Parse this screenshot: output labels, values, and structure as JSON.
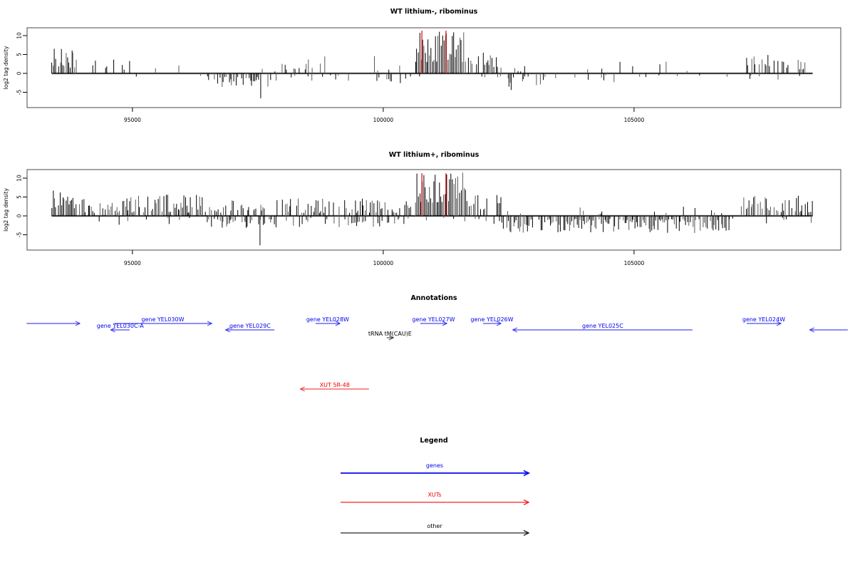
{
  "colors": {
    "gene": "#0000ee",
    "xut": "#ee0000",
    "other": "#000000"
  },
  "annotations": {
    "title": "Annotations",
    "items": [
      {
        "name": "gene-partial-left",
        "label": "",
        "category": "gene",
        "dir": "right",
        "start": 92890,
        "end": 93950,
        "row": "w"
      },
      {
        "name": "gene-YEL030W",
        "label": "gene YEL030W",
        "category": "gene",
        "dir": "right",
        "start": 94630,
        "end": 96580,
        "row": "w"
      },
      {
        "name": "gene-YEL030C-A",
        "label": "gene YEL030C-A",
        "category": "gene",
        "dir": "left",
        "start": 94570,
        "end": 94945,
        "row": "c"
      },
      {
        "name": "gene-YEL029C",
        "label": "gene YEL029C",
        "category": "gene",
        "dir": "left",
        "start": 96860,
        "end": 97830,
        "row": "c"
      },
      {
        "name": "gene-YEL028W",
        "label": "gene YEL028W",
        "category": "gene",
        "dir": "right",
        "start": 98650,
        "end": 99135,
        "row": "w"
      },
      {
        "name": "gene-YEL027W",
        "label": "gene YEL027W",
        "category": "gene",
        "dir": "right",
        "start": 100740,
        "end": 101265,
        "row": "w"
      },
      {
        "name": "gene-YEL026W",
        "label": "gene YEL026W",
        "category": "gene",
        "dir": "right",
        "start": 101990,
        "end": 102345,
        "row": "w"
      },
      {
        "name": "gene-YEL025C",
        "label": "gene YEL025C",
        "category": "gene",
        "dir": "left",
        "start": 102585,
        "end": 106165,
        "row": "c"
      },
      {
        "name": "gene-YEL024W",
        "label": "gene YEL024W",
        "category": "gene",
        "dir": "right",
        "start": 107245,
        "end": 107925,
        "row": "w"
      },
      {
        "name": "gene-partial-right",
        "label": "",
        "category": "gene",
        "dir": "left",
        "start": 108505,
        "end": 109260,
        "row": "c"
      },
      {
        "name": "trna-tM-CAU-E",
        "label": "tRNA tM(CAU)E",
        "category": "other",
        "dir": "right",
        "start": 100070,
        "end": 100200,
        "row": "trna"
      },
      {
        "name": "xut-5R-48",
        "label": "XUT 5R-48",
        "category": "xut",
        "dir": "left",
        "start": 98350,
        "end": 99715,
        "row": "xut"
      }
    ]
  },
  "legend": {
    "title": "Legend",
    "items": [
      {
        "name": "genes",
        "label": "genes",
        "color": "#0000ee"
      },
      {
        "name": "XUTs",
        "label": "XUTs",
        "color": "#ee0000"
      },
      {
        "name": "other",
        "label": "other",
        "color": "#000000"
      }
    ]
  },
  "chart_data": [
    {
      "type": "bar",
      "title": "WT lithium-, ribominus",
      "ylabel": "log2 tag density",
      "xlim": [
        92900,
        109120
      ],
      "ylim": [
        -9,
        12
      ],
      "xticks": [
        {
          "value": 95000,
          "label": "95000"
        },
        {
          "value": 100000,
          "label": "100000"
        },
        {
          "value": 105000,
          "label": "105000"
        }
      ],
      "yticks": [
        {
          "value": -5,
          "label": "-5"
        },
        {
          "value": 0,
          "label": "0"
        },
        {
          "value": 5,
          "label": "5"
        },
        {
          "value": 10,
          "label": "10"
        }
      ],
      "axis_line_range": [
        93390,
        108560
      ],
      "vlines": {
        "color": "#e60000",
        "height": 11.3,
        "x": [
          100770,
          101250
        ]
      },
      "seed": 20,
      "regions": [
        {
          "start": 93390,
          "end": 93880,
          "pos": {
            "density": 0.95,
            "min": 1.5,
            "max": 6.8
          },
          "neg": null
        },
        {
          "start": 93920,
          "end": 95620,
          "pos": {
            "density": 0.2,
            "min": 0.8,
            "max": 4.2
          },
          "neg": {
            "density": 0.02,
            "min": 0.5,
            "max": 1.2
          }
        },
        {
          "start": 95620,
          "end": 96500,
          "pos": {
            "density": 0.1,
            "min": 0.8,
            "max": 3.2
          },
          "neg": {
            "density": 0.03,
            "min": 0.5,
            "max": 1.0
          }
        },
        {
          "start": 96500,
          "end": 97900,
          "pos": {
            "density": 0.04,
            "min": 0.5,
            "max": 1.5
          },
          "neg": {
            "density": 0.55,
            "min": 0.8,
            "max": 3.6
          },
          "spikes": [
            [
              97557,
              -6.6
            ]
          ]
        },
        {
          "start": 97960,
          "end": 98900,
          "pos": {
            "density": 0.35,
            "min": 1.0,
            "max": 4.6
          },
          "neg": {
            "density": 0.12,
            "min": 0.5,
            "max": 2.2
          }
        },
        {
          "start": 98900,
          "end": 99740,
          "pos": {
            "density": 0.07,
            "min": 0.5,
            "max": 2.2
          },
          "neg": {
            "density": 0.1,
            "min": 0.5,
            "max": 2.0
          }
        },
        {
          "start": 99740,
          "end": 100570,
          "pos": {
            "density": 0.15,
            "min": 0.5,
            "max": 4.6
          },
          "neg": {
            "density": 0.22,
            "min": 0.8,
            "max": 2.6
          }
        },
        {
          "start": 100640,
          "end": 101660,
          "pos": {
            "density": 1.0,
            "min": 3.0,
            "max": 11.6
          },
          "neg": {
            "density": 0.05,
            "min": 0.5,
            "max": 1.5
          }
        },
        {
          "start": 101660,
          "end": 102370,
          "pos": {
            "density": 0.55,
            "min": 1.5,
            "max": 6.2
          },
          "neg": {
            "density": 0.06,
            "min": 0.5,
            "max": 1.5
          }
        },
        {
          "start": 102370,
          "end": 103300,
          "pos": {
            "density": 0.06,
            "min": 0.5,
            "max": 2.0
          },
          "neg": {
            "density": 0.4,
            "min": 0.8,
            "max": 3.6
          },
          "spikes": [
            [
              102550,
              -4.4
            ]
          ]
        },
        {
          "start": 103300,
          "end": 106140,
          "pos": {
            "density": 0.1,
            "min": 0.5,
            "max": 3.4
          },
          "neg": {
            "density": 0.12,
            "min": 0.5,
            "max": 2.6
          }
        },
        {
          "start": 106140,
          "end": 107130,
          "pos": {
            "density": 0.02,
            "min": 0.5,
            "max": 1.6
          },
          "neg": {
            "density": 0.04,
            "min": 0.5,
            "max": 1.6
          }
        },
        {
          "start": 107130,
          "end": 108510,
          "pos": {
            "density": 0.5,
            "min": 1.0,
            "max": 5.2
          },
          "neg": {
            "density": 0.06,
            "min": 0.5,
            "max": 2.0
          }
        }
      ]
    },
    {
      "type": "bar",
      "title": "WT lithium+, ribominus",
      "ylabel": "log2 tag density",
      "xlim": [
        92900,
        109120
      ],
      "ylim": [
        -9,
        12
      ],
      "xticks": [
        {
          "value": 95000,
          "label": "95000"
        },
        {
          "value": 100000,
          "label": "100000"
        },
        {
          "value": 105000,
          "label": "105000"
        }
      ],
      "yticks": [
        {
          "value": -5,
          "label": "-5"
        },
        {
          "value": 0,
          "label": "0"
        },
        {
          "value": 5,
          "label": "5"
        },
        {
          "value": 10,
          "label": "10"
        }
      ],
      "axis_line_range": [
        93390,
        108560
      ],
      "vlines": {
        "color": "#e60000",
        "height": 11.3,
        "x": [
          100770,
          101250
        ]
      },
      "seed": 77,
      "regions": [
        {
          "start": 93390,
          "end": 93880,
          "pos": {
            "density": 0.95,
            "min": 2.0,
            "max": 7.6
          },
          "neg": {
            "density": 0.05,
            "min": 0.5,
            "max": 1.5
          }
        },
        {
          "start": 93920,
          "end": 96500,
          "pos": {
            "density": 0.75,
            "min": 0.8,
            "max": 5.6
          },
          "neg": {
            "density": 0.12,
            "min": 0.5,
            "max": 2.6
          }
        },
        {
          "start": 96500,
          "end": 97900,
          "pos": {
            "density": 0.55,
            "min": 0.8,
            "max": 4.6
          },
          "neg": {
            "density": 0.5,
            "min": 0.8,
            "max": 3.2
          },
          "spikes": [
            [
              97543,
              -7.8
            ]
          ]
        },
        {
          "start": 97960,
          "end": 100570,
          "pos": {
            "density": 0.65,
            "min": 0.8,
            "max": 4.6
          },
          "neg": {
            "density": 0.4,
            "min": 0.5,
            "max": 3.0
          }
        },
        {
          "start": 100640,
          "end": 101660,
          "pos": {
            "density": 1.0,
            "min": 3.5,
            "max": 11.6
          },
          "neg": {
            "density": 0.08,
            "min": 0.5,
            "max": 2.0
          }
        },
        {
          "start": 101660,
          "end": 102370,
          "pos": {
            "density": 0.6,
            "min": 1.5,
            "max": 6.2
          },
          "neg": {
            "density": 0.15,
            "min": 0.5,
            "max": 2.2
          }
        },
        {
          "start": 102370,
          "end": 106900,
          "pos": {
            "density": 0.12,
            "min": 0.5,
            "max": 2.6
          },
          "neg": {
            "density": 0.85,
            "min": 0.8,
            "max": 4.6
          }
        },
        {
          "start": 106900,
          "end": 107130,
          "pos": {
            "density": 0.05,
            "min": 0.5,
            "max": 1.6
          },
          "neg": {
            "density": 0.15,
            "min": 0.5,
            "max": 2.0
          }
        },
        {
          "start": 107130,
          "end": 108560,
          "pos": {
            "density": 0.8,
            "min": 1.0,
            "max": 5.6
          },
          "neg": {
            "density": 0.1,
            "min": 0.5,
            "max": 2.2
          }
        }
      ]
    }
  ]
}
